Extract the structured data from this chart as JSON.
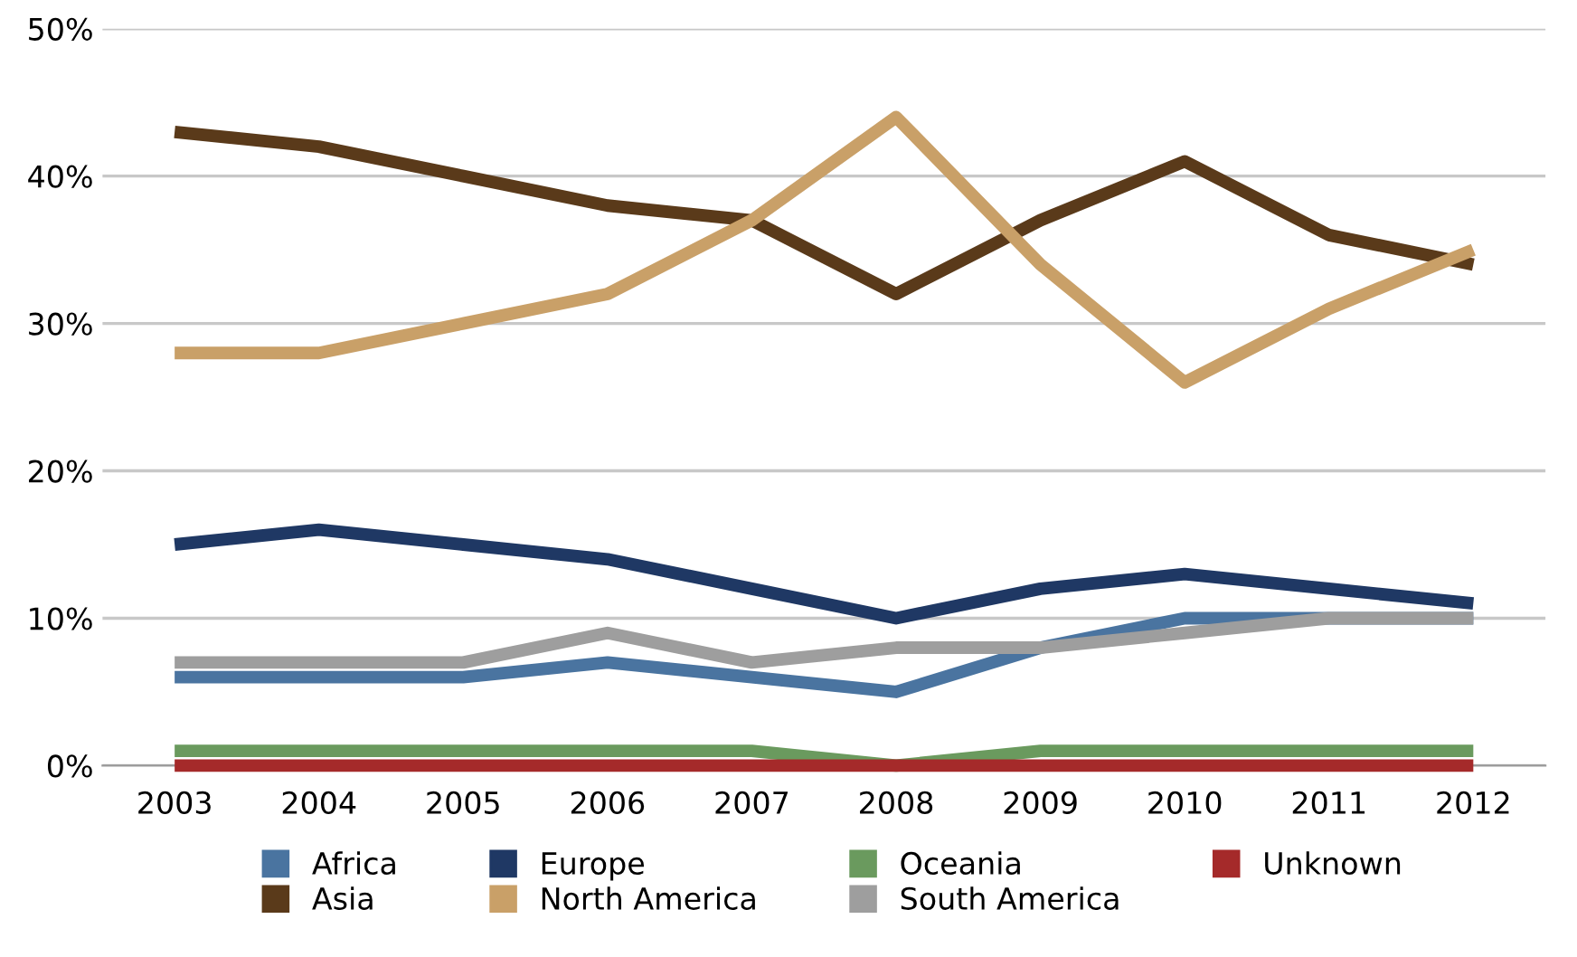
{
  "chart_data": {
    "type": "line",
    "categories": [
      "2003",
      "2004",
      "2005",
      "2006",
      "2007",
      "2008",
      "2009",
      "2010",
      "2011",
      "2012"
    ],
    "ylim": [
      0,
      50
    ],
    "yticks": [
      {
        "value": 0,
        "label": "0%"
      },
      {
        "value": 10,
        "label": "10%"
      },
      {
        "value": 20,
        "label": "20%"
      },
      {
        "value": 30,
        "label": "30%"
      },
      {
        "value": 40,
        "label": "40%"
      },
      {
        "value": 50,
        "label": "50%"
      }
    ],
    "grid": "y",
    "legend": "bottom",
    "marker": "none",
    "line_style": "solid",
    "series": [
      {
        "name": "Africa",
        "color": "#4a74a0",
        "values": [
          6,
          6,
          6,
          7,
          6,
          5,
          8,
          10,
          10,
          10
        ]
      },
      {
        "name": "Europe",
        "color": "#1f3864",
        "values": [
          15,
          16,
          15,
          14,
          12,
          10,
          12,
          13,
          12,
          11
        ]
      },
      {
        "name": "Oceania",
        "color": "#6a9a5e",
        "values": [
          1,
          1,
          1,
          1,
          1,
          0,
          1,
          1,
          1,
          1
        ]
      },
      {
        "name": "Unknown",
        "color": "#a52a2a",
        "values": [
          0,
          0,
          0,
          0,
          0,
          0,
          0,
          0,
          0,
          0
        ]
      },
      {
        "name": "Asia",
        "color": "#5a3a1a",
        "values": [
          43,
          42,
          40,
          38,
          37,
          32,
          37,
          41,
          36,
          34
        ]
      },
      {
        "name": "North America",
        "color": "#c9a068",
        "values": [
          28,
          28,
          30,
          32,
          37,
          44,
          34,
          26,
          31,
          35
        ]
      },
      {
        "name": "South America",
        "color": "#9e9e9e",
        "values": [
          7,
          7,
          7,
          9,
          7,
          8,
          8,
          9,
          10,
          10
        ]
      }
    ]
  }
}
